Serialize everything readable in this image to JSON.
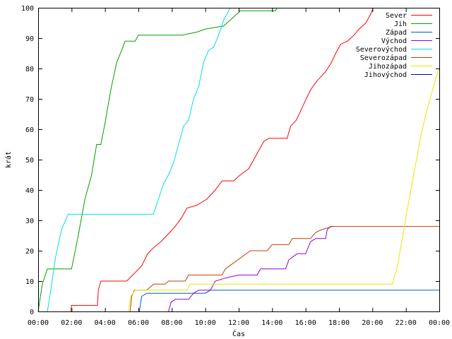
{
  "chart_data": {
    "type": "line",
    "xlabel": "Čas",
    "ylabel": "krát",
    "x_unit": "hours",
    "xlim": [
      0,
      24
    ],
    "ylim": [
      0,
      100
    ],
    "x_ticks": [
      0,
      2,
      4,
      6,
      8,
      10,
      12,
      14,
      16,
      18,
      20,
      22,
      24
    ],
    "x_tick_labels": [
      "00:00",
      "02:00",
      "04:00",
      "06:00",
      "08:00",
      "10:00",
      "12:00",
      "14:00",
      "16:00",
      "18:00",
      "20:00",
      "22:00",
      "00:00"
    ],
    "y_ticks": [
      0,
      10,
      20,
      30,
      40,
      50,
      60,
      70,
      80,
      90,
      100
    ],
    "grid": false,
    "legend_position": "top-right",
    "series": [
      {
        "name": "Sever",
        "color": "#ff0000",
        "points": [
          [
            1.95,
            0
          ],
          [
            2.0,
            2
          ],
          [
            3.55,
            2
          ],
          [
            3.6,
            7
          ],
          [
            3.75,
            10
          ],
          [
            5.3,
            10
          ],
          [
            6.2,
            15
          ],
          [
            6.55,
            19
          ],
          [
            6.9,
            21
          ],
          [
            7.35,
            23
          ],
          [
            7.7,
            25
          ],
          [
            8.2,
            28
          ],
          [
            8.6,
            31
          ],
          [
            8.9,
            34
          ],
          [
            9.5,
            35
          ],
          [
            10.1,
            37
          ],
          [
            10.6,
            40
          ],
          [
            11.0,
            43
          ],
          [
            11.7,
            43
          ],
          [
            12.1,
            45
          ],
          [
            12.6,
            47
          ],
          [
            12.9,
            50
          ],
          [
            13.2,
            53
          ],
          [
            13.5,
            56
          ],
          [
            13.8,
            57
          ],
          [
            14.9,
            57
          ],
          [
            15.1,
            61
          ],
          [
            15.45,
            63
          ],
          [
            15.7,
            66
          ],
          [
            15.95,
            69
          ],
          [
            16.3,
            73
          ],
          [
            16.7,
            76
          ],
          [
            17.2,
            79
          ],
          [
            17.55,
            82
          ],
          [
            17.8,
            85
          ],
          [
            18.1,
            88
          ],
          [
            18.5,
            89
          ],
          [
            18.9,
            91
          ],
          [
            19.2,
            93
          ],
          [
            19.6,
            95
          ],
          [
            19.9,
            98
          ],
          [
            20.05,
            100
          ]
        ]
      },
      {
        "name": "Jih",
        "color": "#00a000",
        "points": [
          [
            0,
            0
          ],
          [
            0.25,
            9
          ],
          [
            0.55,
            14
          ],
          [
            2.0,
            14
          ],
          [
            2.4,
            25
          ],
          [
            2.8,
            37
          ],
          [
            3.2,
            45
          ],
          [
            3.5,
            55
          ],
          [
            3.75,
            55
          ],
          [
            4.0,
            62
          ],
          [
            4.35,
            73
          ],
          [
            4.7,
            82
          ],
          [
            5.0,
            86
          ],
          [
            5.2,
            89
          ],
          [
            5.8,
            89
          ],
          [
            6.0,
            91
          ],
          [
            8.6,
            91
          ],
          [
            9.5,
            92
          ],
          [
            10.0,
            93
          ],
          [
            11.1,
            94
          ],
          [
            11.5,
            96
          ],
          [
            11.9,
            98
          ],
          [
            12.1,
            99
          ],
          [
            14.2,
            99
          ],
          [
            14.3,
            100
          ]
        ]
      },
      {
        "name": "Západ",
        "color": "#0060ad",
        "points": [
          [
            6.05,
            0
          ],
          [
            6.2,
            5
          ],
          [
            6.5,
            6
          ],
          [
            10.0,
            6
          ],
          [
            10.3,
            7
          ],
          [
            24.0,
            7
          ]
        ]
      },
      {
        "name": "Východ",
        "color": "#9400d3",
        "points": [
          [
            7.8,
            0
          ],
          [
            7.95,
            3
          ],
          [
            8.2,
            4
          ],
          [
            9.0,
            4
          ],
          [
            9.3,
            6
          ],
          [
            9.6,
            7
          ],
          [
            10.3,
            7
          ],
          [
            10.6,
            10
          ],
          [
            11.2,
            11
          ],
          [
            12.0,
            12
          ],
          [
            13.1,
            12
          ],
          [
            13.3,
            14
          ],
          [
            14.8,
            14
          ],
          [
            15.0,
            17
          ],
          [
            15.5,
            19
          ],
          [
            16.0,
            19
          ],
          [
            16.3,
            23
          ],
          [
            16.6,
            24
          ],
          [
            17.2,
            24
          ],
          [
            17.3,
            27
          ],
          [
            17.5,
            28
          ],
          [
            17.7,
            28
          ]
        ]
      },
      {
        "name": "Severovýchod",
        "color": "#00e0e0",
        "points": [
          [
            0.55,
            0
          ],
          [
            0.7,
            5
          ],
          [
            1.05,
            18
          ],
          [
            1.4,
            27
          ],
          [
            1.8,
            32
          ],
          [
            6.9,
            32
          ],
          [
            7.2,
            37
          ],
          [
            7.5,
            42
          ],
          [
            7.8,
            45
          ],
          [
            8.1,
            49
          ],
          [
            8.4,
            55
          ],
          [
            8.7,
            61
          ],
          [
            9.0,
            63
          ],
          [
            9.3,
            70
          ],
          [
            9.6,
            74
          ],
          [
            9.9,
            82
          ],
          [
            10.2,
            86
          ],
          [
            10.5,
            87
          ],
          [
            10.8,
            91
          ],
          [
            11.1,
            96
          ],
          [
            11.4,
            99
          ],
          [
            11.5,
            100
          ]
        ]
      },
      {
        "name": "Severozápad",
        "color": "#c04000",
        "points": [
          [
            5.5,
            0
          ],
          [
            5.6,
            5
          ],
          [
            5.75,
            7
          ],
          [
            6.5,
            7
          ],
          [
            6.9,
            9
          ],
          [
            7.6,
            9
          ],
          [
            7.8,
            10
          ],
          [
            8.8,
            10
          ],
          [
            9.0,
            12
          ],
          [
            11.0,
            12
          ],
          [
            11.2,
            14
          ],
          [
            11.7,
            16
          ],
          [
            12.2,
            18
          ],
          [
            12.7,
            20
          ],
          [
            13.7,
            20
          ],
          [
            14.0,
            22
          ],
          [
            15.0,
            22
          ],
          [
            15.2,
            24
          ],
          [
            16.3,
            24
          ],
          [
            16.6,
            26
          ],
          [
            17.0,
            27
          ],
          [
            17.6,
            28
          ],
          [
            24.0,
            28
          ]
        ]
      },
      {
        "name": "Jihozápad",
        "color": "#e8e800",
        "points": [
          [
            5.4,
            0
          ],
          [
            5.55,
            5
          ],
          [
            5.8,
            7
          ],
          [
            8.9,
            7
          ],
          [
            9.1,
            9
          ],
          [
            21.2,
            9
          ],
          [
            21.5,
            15
          ],
          [
            21.75,
            23
          ],
          [
            22.0,
            31
          ],
          [
            22.3,
            40
          ],
          [
            22.6,
            49
          ],
          [
            22.9,
            58
          ],
          [
            23.2,
            65
          ],
          [
            23.5,
            71
          ],
          [
            23.8,
            77
          ],
          [
            24.0,
            80
          ]
        ]
      },
      {
        "name": "Jihovýchod",
        "color": "#0000a0",
        "points": []
      }
    ]
  }
}
